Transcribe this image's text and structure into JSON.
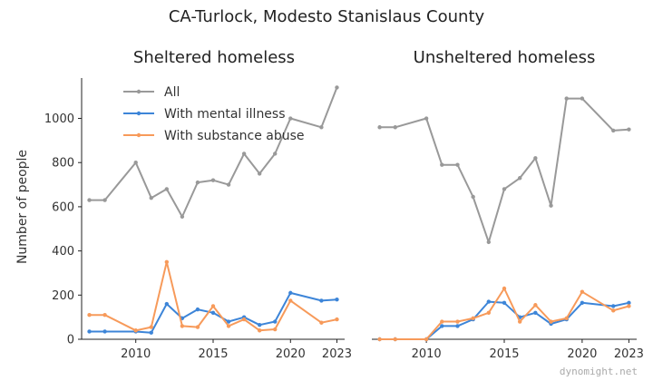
{
  "watermark": "dynomight.net",
  "chart_data": {
    "type": "line",
    "title": "CA-Turlock, Modesto Stanislaus County",
    "ylabel": "Number of people",
    "xlim": [
      2006.5,
      2023.5
    ],
    "ylim": [
      0,
      1150
    ],
    "x_ticks": [
      2010,
      2015,
      2020,
      2023
    ],
    "y_ticks": [
      0,
      200,
      400,
      600,
      800,
      1000
    ],
    "legend": {
      "placement": "top-left of left panel"
    },
    "colors": {
      "All": "#999999",
      "With mental illness": "#3d85d8",
      "With substance abuse": "#f79a5a"
    },
    "panels": [
      {
        "title": "Sheltered homeless",
        "series": [
          {
            "name": "All",
            "x": [
              2007,
              2008,
              2010,
              2011,
              2012,
              2013,
              2014,
              2015,
              2016,
              2017,
              2018,
              2019,
              2020,
              2022,
              2023
            ],
            "y": [
              630,
              630,
              800,
              640,
              680,
              555,
              710,
              720,
              700,
              840,
              750,
              840,
              1000,
              960,
              1140
            ]
          },
          {
            "name": "With mental illness",
            "x": [
              2007,
              2008,
              2010,
              2011,
              2012,
              2013,
              2014,
              2015,
              2016,
              2017,
              2018,
              2019,
              2020,
              2022,
              2023
            ],
            "y": [
              35,
              35,
              35,
              30,
              160,
              95,
              135,
              120,
              80,
              100,
              65,
              80,
              210,
              175,
              180
            ]
          },
          {
            "name": "With substance abuse",
            "x": [
              2007,
              2008,
              2010,
              2011,
              2012,
              2013,
              2014,
              2015,
              2016,
              2017,
              2018,
              2019,
              2020,
              2022,
              2023
            ],
            "y": [
              110,
              110,
              40,
              55,
              350,
              60,
              55,
              150,
              60,
              90,
              40,
              45,
              175,
              75,
              90
            ]
          }
        ]
      },
      {
        "title": "Unsheltered homeless",
        "series": [
          {
            "name": "All",
            "x": [
              2007,
              2008,
              2010,
              2011,
              2012,
              2013,
              2014,
              2015,
              2016,
              2017,
              2018,
              2019,
              2020,
              2022,
              2023
            ],
            "y": [
              960,
              960,
              1000,
              790,
              790,
              645,
              440,
              680,
              730,
              820,
              605,
              1090,
              1090,
              945,
              950
            ]
          },
          {
            "name": "With mental illness",
            "x": [
              2007,
              2008,
              2010,
              2011,
              2012,
              2013,
              2014,
              2015,
              2016,
              2017,
              2018,
              2019,
              2020,
              2022,
              2023
            ],
            "y": [
              0,
              0,
              0,
              60,
              60,
              90,
              170,
              165,
              100,
              120,
              70,
              90,
              165,
              150,
              165
            ]
          },
          {
            "name": "With substance abuse",
            "x": [
              2007,
              2008,
              2010,
              2011,
              2012,
              2013,
              2014,
              2015,
              2016,
              2017,
              2018,
              2019,
              2020,
              2022,
              2023
            ],
            "y": [
              0,
              0,
              0,
              80,
              80,
              95,
              120,
              230,
              80,
              155,
              80,
              95,
              215,
              130,
              150
            ]
          }
        ]
      }
    ]
  }
}
